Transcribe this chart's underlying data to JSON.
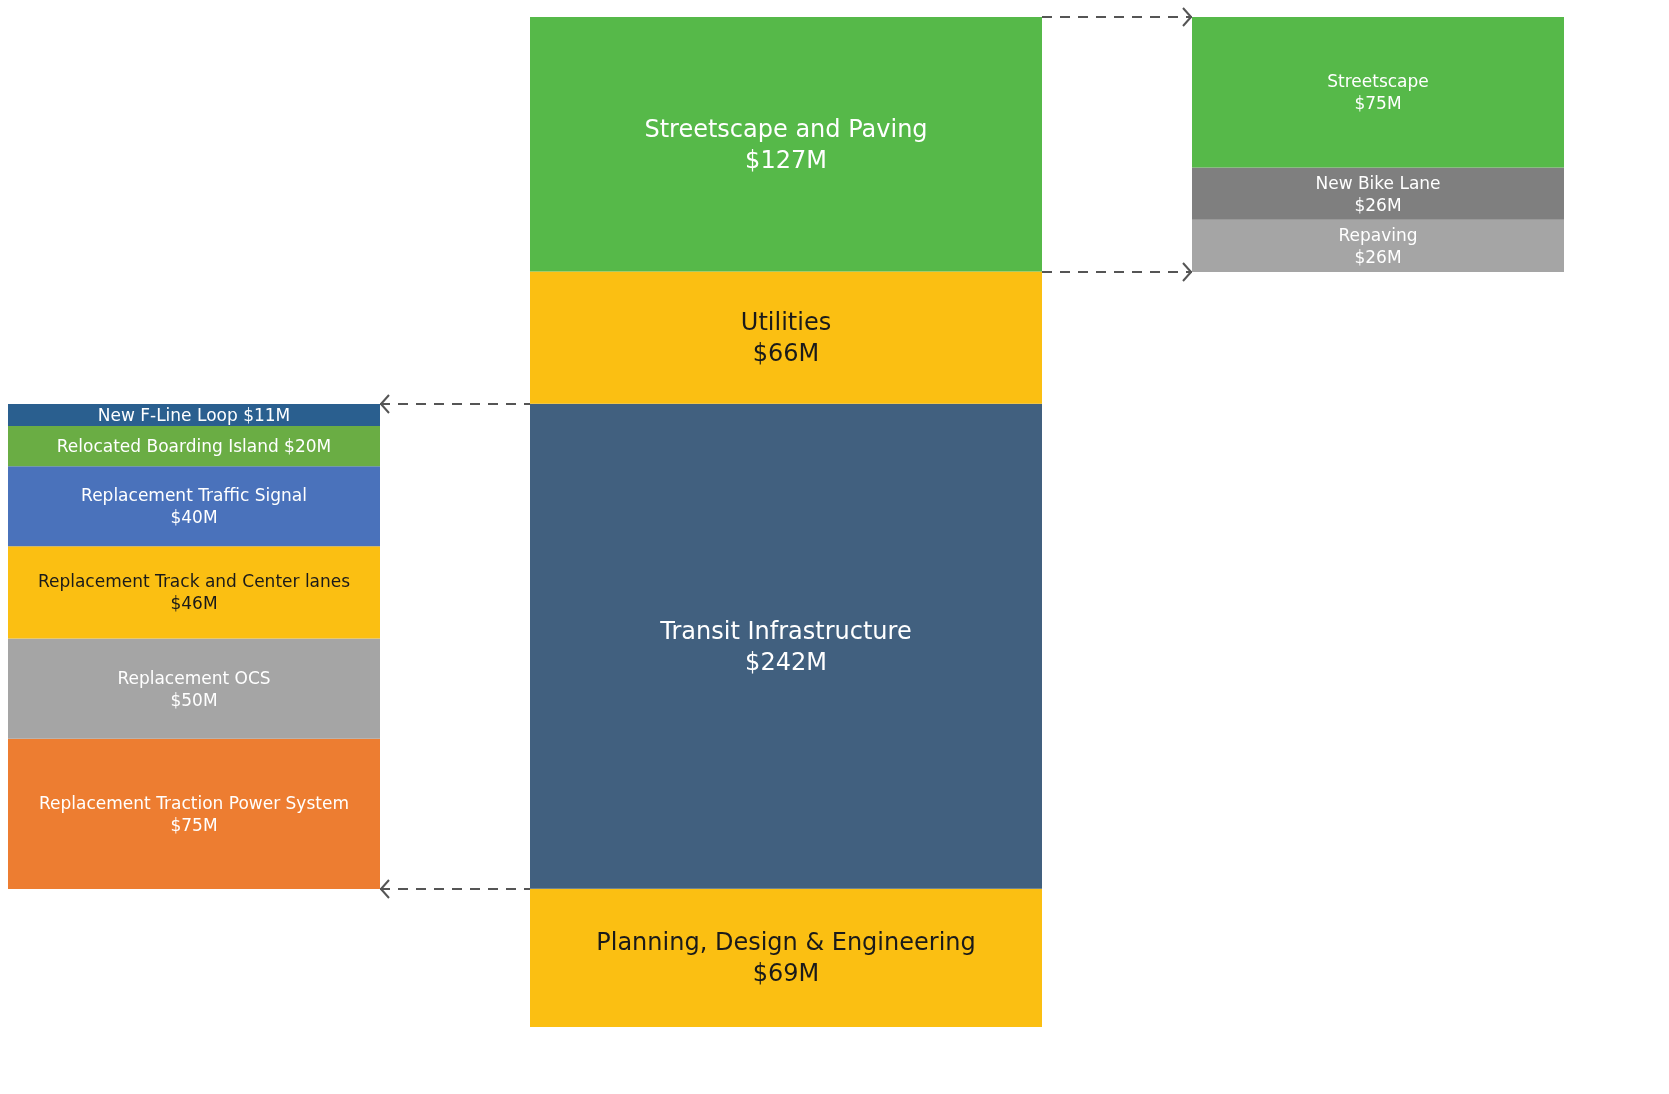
{
  "chart_data": [
    {
      "type": "bar",
      "stacked": true,
      "categories": [
        null
      ],
      "series": [
        {
          "name": "Replacement Traction Power System",
          "color": "#ed7d31",
          "values": [
            75
          ],
          "value_labels": [
            "$75M"
          ]
        },
        {
          "name": "Replacement OCS",
          "color": "#a5a5a5",
          "values": [
            50
          ],
          "value_labels": [
            "$50M"
          ]
        },
        {
          "name": "Replacement Track and Center lanes",
          "color": "#fbbf12",
          "values": [
            46
          ],
          "value_labels": [
            "$46M"
          ]
        },
        {
          "name": "Replacement Traffic Signal",
          "color": "#4a72bb",
          "values": [
            40
          ],
          "value_labels": [
            "$40M"
          ]
        },
        {
          "name": "Relocated Boarding Island",
          "color": "#6aad44",
          "values": [
            20
          ],
          "value_labels": [
            "$20M"
          ]
        },
        {
          "name": "New F-Line Loop",
          "color": "#2a5f8f",
          "values": [
            11
          ],
          "value_labels": [
            "$11M"
          ]
        }
      ]
    },
    {
      "type": "bar",
      "stacked": true,
      "categories": [
        null
      ],
      "series": [
        {
          "name": "Planning, Design & Engineering",
          "color": "#fbbf12",
          "values": [
            69
          ],
          "value_labels": [
            "$69M"
          ]
        },
        {
          "name": "Transit Infrastructure",
          "color": "#41607f",
          "values": [
            242
          ],
          "value_labels": [
            "$242M"
          ]
        },
        {
          "name": "Utilities",
          "color": "#fbbf12",
          "values": [
            66
          ],
          "value_labels": [
            "$66M"
          ]
        },
        {
          "name": "Streetscape and Paving",
          "color": "#56b949",
          "values": [
            127
          ],
          "value_labels": [
            "$127M"
          ]
        }
      ]
    },
    {
      "type": "bar",
      "stacked": true,
      "categories": [
        null
      ],
      "series": [
        {
          "name": "Repaving",
          "color": "#a5a5a5",
          "values": [
            26
          ],
          "value_labels": [
            "$26M"
          ]
        },
        {
          "name": "New Bike Lane",
          "color": "#7f7f7f",
          "values": [
            26
          ],
          "value_labels": [
            "$26M"
          ]
        },
        {
          "name": "Streetscape",
          "color": "#56b949",
          "values": [
            75
          ],
          "value_labels": [
            "$75M"
          ]
        }
      ]
    }
  ]
}
